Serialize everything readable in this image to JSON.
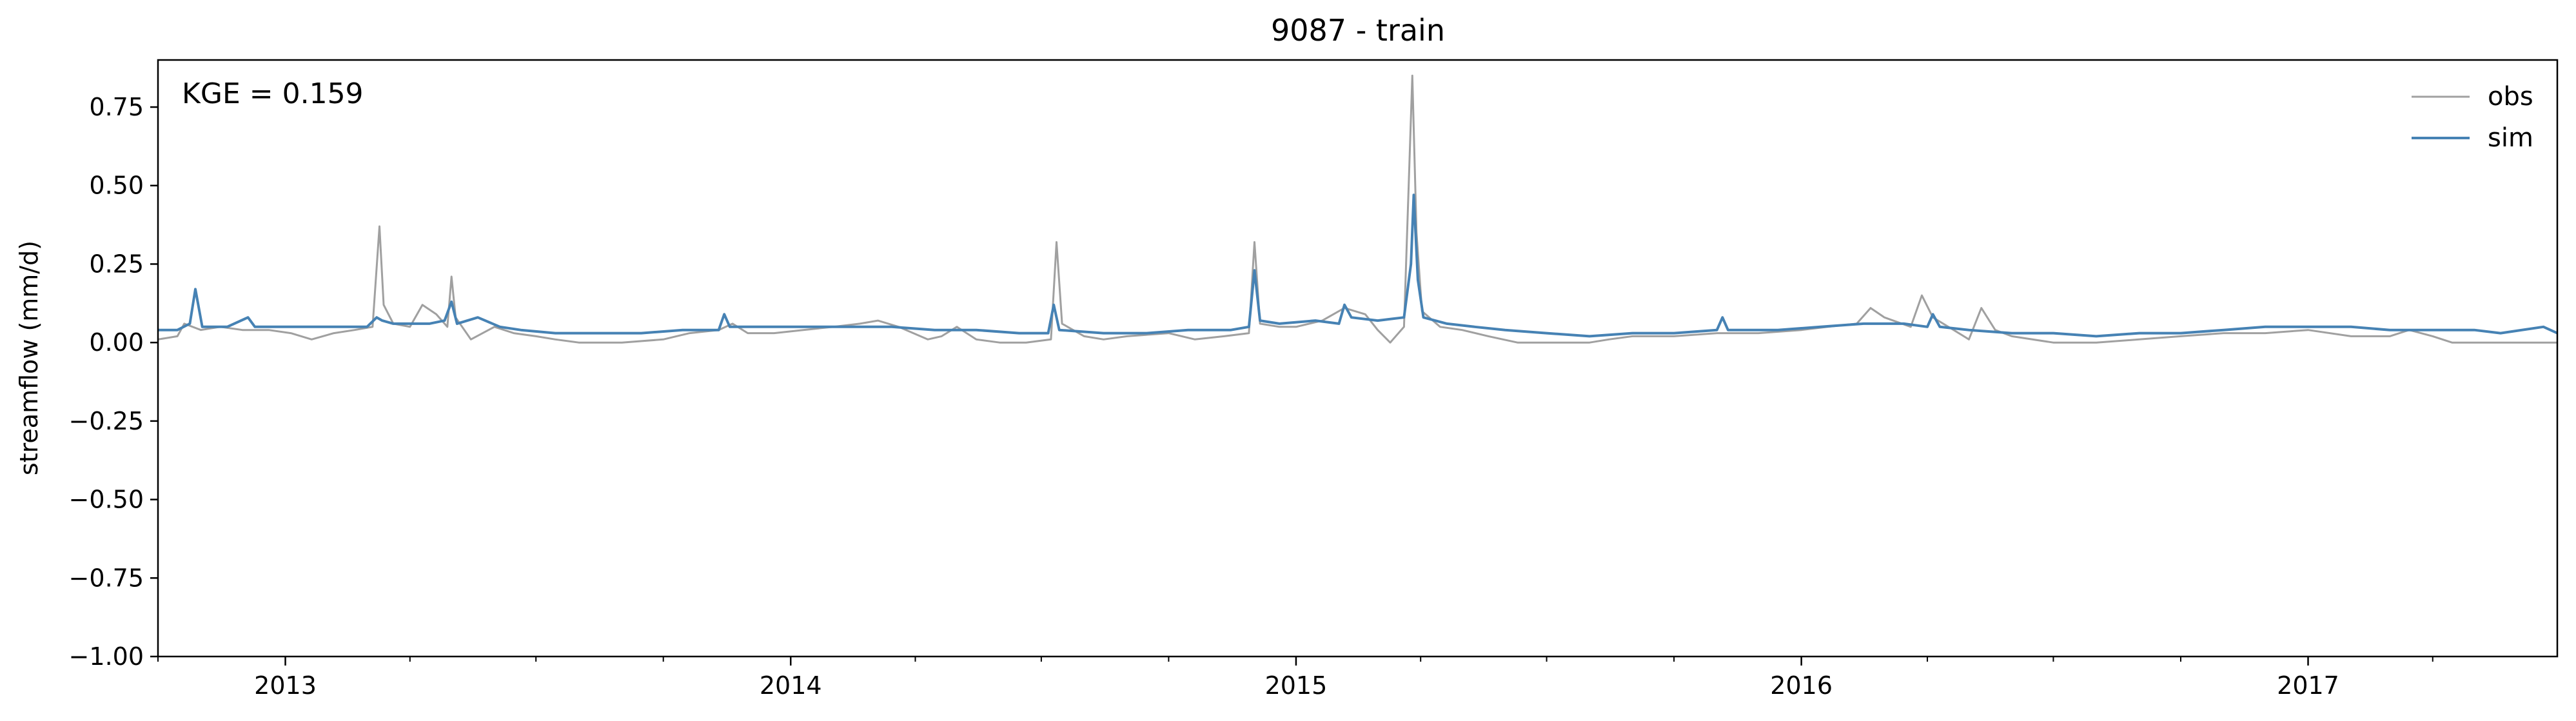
{
  "chart_data": {
    "type": "line",
    "title": "9087 - train",
    "xlabel": "",
    "ylabel": "streamflow (mm/d)",
    "ylim": [
      -1.0,
      0.9
    ],
    "xlim": [
      "2012-10-01",
      "2017-06-30"
    ],
    "yticks": [
      -1.0,
      -0.75,
      -0.5,
      -0.25,
      0.0,
      0.25,
      0.5,
      0.75
    ],
    "ytick_labels": [
      "−1.00",
      "−0.75",
      "−0.50",
      "−0.25",
      "0.00",
      "0.25",
      "0.50",
      "0.75"
    ],
    "xticks_major": [
      "2013-01-01",
      "2014-01-01",
      "2015-01-01",
      "2016-01-01",
      "2017-01-01"
    ],
    "xtick_labels": [
      "2013",
      "2014",
      "2015",
      "2016",
      "2017"
    ],
    "minor_tick_months": [
      4,
      7,
      10
    ],
    "annotation": "KGE = 0.159",
    "legend": {
      "placement": "top-right",
      "entries": [
        "obs",
        "sim"
      ]
    },
    "grid": false,
    "series": [
      {
        "name": "obs",
        "color": "#a0a0a0",
        "points": [
          [
            "2012-10-01",
            0.01
          ],
          [
            "2012-10-15",
            0.02
          ],
          [
            "2012-10-20",
            0.06
          ],
          [
            "2012-11-01",
            0.04
          ],
          [
            "2012-11-15",
            0.05
          ],
          [
            "2012-12-01",
            0.04
          ],
          [
            "2012-12-20",
            0.04
          ],
          [
            "2013-01-05",
            0.03
          ],
          [
            "2013-01-20",
            0.01
          ],
          [
            "2013-02-05",
            0.03
          ],
          [
            "2013-02-20",
            0.04
          ],
          [
            "2013-03-05",
            0.05
          ],
          [
            "2013-03-10",
            0.37
          ],
          [
            "2013-03-13",
            0.12
          ],
          [
            "2013-03-20",
            0.06
          ],
          [
            "2013-04-01",
            0.05
          ],
          [
            "2013-04-10",
            0.12
          ],
          [
            "2013-04-20",
            0.09
          ],
          [
            "2013-04-28",
            0.05
          ],
          [
            "2013-05-01",
            0.21
          ],
          [
            "2013-05-04",
            0.08
          ],
          [
            "2013-05-15",
            0.01
          ],
          [
            "2013-06-01",
            0.05
          ],
          [
            "2013-06-15",
            0.03
          ],
          [
            "2013-07-01",
            0.02
          ],
          [
            "2013-07-15",
            0.01
          ],
          [
            "2013-08-01",
            0.0
          ],
          [
            "2013-09-01",
            0.0
          ],
          [
            "2013-10-01",
            0.01
          ],
          [
            "2013-10-20",
            0.03
          ],
          [
            "2013-11-10",
            0.04
          ],
          [
            "2013-11-20",
            0.06
          ],
          [
            "2013-12-01",
            0.03
          ],
          [
            "2013-12-20",
            0.03
          ],
          [
            "2014-01-10",
            0.04
          ],
          [
            "2014-02-01",
            0.05
          ],
          [
            "2014-02-20",
            0.06
          ],
          [
            "2014-03-05",
            0.07
          ],
          [
            "2014-03-20",
            0.05
          ],
          [
            "2014-04-10",
            0.01
          ],
          [
            "2014-04-20",
            0.02
          ],
          [
            "2014-05-01",
            0.05
          ],
          [
            "2014-05-15",
            0.01
          ],
          [
            "2014-06-01",
            0.0
          ],
          [
            "2014-06-20",
            0.0
          ],
          [
            "2014-07-08",
            0.01
          ],
          [
            "2014-07-12",
            0.32
          ],
          [
            "2014-07-16",
            0.06
          ],
          [
            "2014-08-01",
            0.02
          ],
          [
            "2014-08-15",
            0.01
          ],
          [
            "2014-09-01",
            0.02
          ],
          [
            "2014-10-01",
            0.03
          ],
          [
            "2014-10-20",
            0.01
          ],
          [
            "2014-11-10",
            0.02
          ],
          [
            "2014-11-28",
            0.03
          ],
          [
            "2014-12-02",
            0.32
          ],
          [
            "2014-12-06",
            0.06
          ],
          [
            "2014-12-20",
            0.05
          ],
          [
            "2015-01-01",
            0.05
          ],
          [
            "2015-01-20",
            0.07
          ],
          [
            "2015-02-05",
            0.11
          ],
          [
            "2015-02-20",
            0.09
          ],
          [
            "2015-03-01",
            0.04
          ],
          [
            "2015-03-10",
            0.0
          ],
          [
            "2015-03-20",
            0.05
          ],
          [
            "2015-03-26",
            0.85
          ],
          [
            "2015-03-29",
            0.35
          ],
          [
            "2015-04-02",
            0.1
          ],
          [
            "2015-04-15",
            0.05
          ],
          [
            "2015-05-01",
            0.04
          ],
          [
            "2015-05-20",
            0.02
          ],
          [
            "2015-06-10",
            0.0
          ],
          [
            "2015-07-01",
            0.0
          ],
          [
            "2015-08-01",
            0.0
          ],
          [
            "2015-08-15",
            0.01
          ],
          [
            "2015-09-01",
            0.02
          ],
          [
            "2015-10-01",
            0.02
          ],
          [
            "2015-11-01",
            0.03
          ],
          [
            "2015-12-01",
            0.03
          ],
          [
            "2016-01-01",
            0.04
          ],
          [
            "2016-01-20",
            0.05
          ],
          [
            "2016-02-10",
            0.06
          ],
          [
            "2016-02-20",
            0.11
          ],
          [
            "2016-03-01",
            0.08
          ],
          [
            "2016-03-20",
            0.05
          ],
          [
            "2016-03-28",
            0.15
          ],
          [
            "2016-04-05",
            0.08
          ],
          [
            "2016-04-20",
            0.04
          ],
          [
            "2016-05-01",
            0.01
          ],
          [
            "2016-05-10",
            0.11
          ],
          [
            "2016-05-20",
            0.04
          ],
          [
            "2016-06-01",
            0.02
          ],
          [
            "2016-07-01",
            0.0
          ],
          [
            "2016-08-01",
            0.0
          ],
          [
            "2016-09-01",
            0.01
          ],
          [
            "2016-10-01",
            0.02
          ],
          [
            "2016-11-01",
            0.03
          ],
          [
            "2016-12-01",
            0.03
          ],
          [
            "2017-01-01",
            0.04
          ],
          [
            "2017-02-01",
            0.02
          ],
          [
            "2017-03-01",
            0.02
          ],
          [
            "2017-03-15",
            0.04
          ],
          [
            "2017-04-01",
            0.02
          ],
          [
            "2017-04-15",
            0.0
          ],
          [
            "2017-05-01",
            0.0
          ],
          [
            "2017-06-01",
            0.0
          ],
          [
            "2017-06-30",
            0.0
          ]
        ]
      },
      {
        "name": "sim",
        "color": "#4682b4",
        "points": [
          [
            "2012-10-01",
            0.04
          ],
          [
            "2012-10-15",
            0.04
          ],
          [
            "2012-10-24",
            0.06
          ],
          [
            "2012-10-28",
            0.17
          ],
          [
            "2012-11-02",
            0.05
          ],
          [
            "2012-11-20",
            0.05
          ],
          [
            "2012-12-05",
            0.08
          ],
          [
            "2012-12-10",
            0.05
          ],
          [
            "2013-01-01",
            0.05
          ],
          [
            "2013-02-01",
            0.05
          ],
          [
            "2013-03-01",
            0.05
          ],
          [
            "2013-03-08",
            0.08
          ],
          [
            "2013-03-12",
            0.07
          ],
          [
            "2013-03-20",
            0.06
          ],
          [
            "2013-04-15",
            0.06
          ],
          [
            "2013-04-26",
            0.07
          ],
          [
            "2013-05-01",
            0.13
          ],
          [
            "2013-05-05",
            0.06
          ],
          [
            "2013-05-20",
            0.08
          ],
          [
            "2013-06-05",
            0.05
          ],
          [
            "2013-06-20",
            0.04
          ],
          [
            "2013-07-15",
            0.03
          ],
          [
            "2013-08-15",
            0.03
          ],
          [
            "2013-09-15",
            0.03
          ],
          [
            "2013-10-15",
            0.04
          ],
          [
            "2013-11-10",
            0.04
          ],
          [
            "2013-11-14",
            0.09
          ],
          [
            "2013-11-18",
            0.05
          ],
          [
            "2013-12-15",
            0.05
          ],
          [
            "2014-01-15",
            0.05
          ],
          [
            "2014-02-15",
            0.05
          ],
          [
            "2014-03-15",
            0.05
          ],
          [
            "2014-04-15",
            0.04
          ],
          [
            "2014-05-15",
            0.04
          ],
          [
            "2014-06-15",
            0.03
          ],
          [
            "2014-07-06",
            0.03
          ],
          [
            "2014-07-10",
            0.12
          ],
          [
            "2014-07-14",
            0.04
          ],
          [
            "2014-08-15",
            0.03
          ],
          [
            "2014-09-15",
            0.03
          ],
          [
            "2014-10-15",
            0.04
          ],
          [
            "2014-11-15",
            0.04
          ],
          [
            "2014-11-28",
            0.05
          ],
          [
            "2014-12-02",
            0.23
          ],
          [
            "2014-12-06",
            0.07
          ],
          [
            "2014-12-20",
            0.06
          ],
          [
            "2015-01-15",
            0.07
          ],
          [
            "2015-02-01",
            0.06
          ],
          [
            "2015-02-05",
            0.12
          ],
          [
            "2015-02-10",
            0.08
          ],
          [
            "2015-03-01",
            0.07
          ],
          [
            "2015-03-20",
            0.08
          ],
          [
            "2015-03-25",
            0.25
          ],
          [
            "2015-03-27",
            0.47
          ],
          [
            "2015-03-30",
            0.2
          ],
          [
            "2015-04-03",
            0.08
          ],
          [
            "2015-04-20",
            0.06
          ],
          [
            "2015-05-10",
            0.05
          ],
          [
            "2015-06-01",
            0.04
          ],
          [
            "2015-07-01",
            0.03
          ],
          [
            "2015-08-01",
            0.02
          ],
          [
            "2015-09-01",
            0.03
          ],
          [
            "2015-10-01",
            0.03
          ],
          [
            "2015-11-01",
            0.04
          ],
          [
            "2015-11-05",
            0.08
          ],
          [
            "2015-11-09",
            0.04
          ],
          [
            "2015-12-15",
            0.04
          ],
          [
            "2016-01-15",
            0.05
          ],
          [
            "2016-02-15",
            0.06
          ],
          [
            "2016-03-15",
            0.06
          ],
          [
            "2016-04-01",
            0.05
          ],
          [
            "2016-04-05",
            0.09
          ],
          [
            "2016-04-10",
            0.05
          ],
          [
            "2016-05-01",
            0.04
          ],
          [
            "2016-06-01",
            0.03
          ],
          [
            "2016-07-01",
            0.03
          ],
          [
            "2016-08-01",
            0.02
          ],
          [
            "2016-09-01",
            0.03
          ],
          [
            "2016-10-01",
            0.03
          ],
          [
            "2016-11-01",
            0.04
          ],
          [
            "2016-12-01",
            0.05
          ],
          [
            "2017-01-01",
            0.05
          ],
          [
            "2017-02-01",
            0.05
          ],
          [
            "2017-03-01",
            0.04
          ],
          [
            "2017-04-01",
            0.04
          ],
          [
            "2017-05-01",
            0.04
          ],
          [
            "2017-05-20",
            0.03
          ],
          [
            "2017-06-20",
            0.05
          ],
          [
            "2017-06-30",
            0.03
          ]
        ]
      }
    ]
  }
}
